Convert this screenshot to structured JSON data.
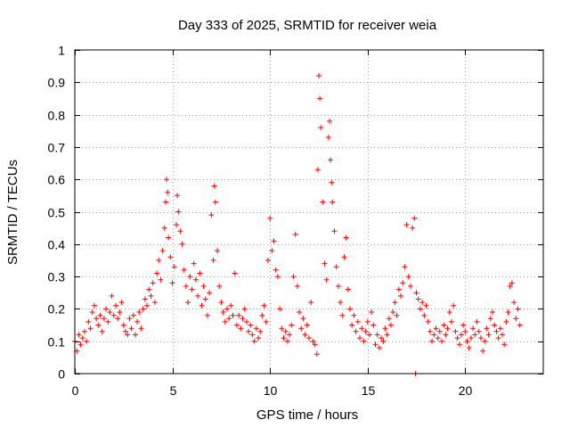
{
  "chart_data": {
    "type": "scatter",
    "title": "Day 333 of 2025, SRMTID for receiver weia",
    "xlabel": "GPS time / hours",
    "ylabel": "SRMTID / TECUs",
    "xlim": [
      0,
      24
    ],
    "ylim": [
      0,
      1
    ],
    "xticks": [
      0,
      5,
      10,
      15,
      20
    ],
    "xtick_labels": [
      "0",
      "5",
      "10",
      "15",
      "20"
    ],
    "yticks": [
      0,
      0.1,
      0.2,
      0.3,
      0.4,
      0.5,
      0.6,
      0.7,
      0.8,
      0.9,
      1
    ],
    "ytick_labels": [
      "0",
      "0.1",
      "0.2",
      "0.3",
      "0.4",
      "0.5",
      "0.6",
      "0.7",
      "0.8",
      "0.9",
      "1"
    ],
    "grid": true,
    "marker": "+",
    "marker_color": "#ff0000",
    "series": [
      {
        "name": "SRMTID",
        "points": [
          [
            0.0,
            0.1
          ],
          [
            0.1,
            0.07
          ],
          [
            0.2,
            0.12
          ],
          [
            0.3,
            0.09
          ],
          [
            0.4,
            0.11
          ],
          [
            0.5,
            0.13
          ],
          [
            0.6,
            0.1
          ],
          [
            0.7,
            0.16
          ],
          [
            0.8,
            0.14
          ],
          [
            0.9,
            0.19
          ],
          [
            1.0,
            0.21
          ],
          [
            1.1,
            0.17
          ],
          [
            1.2,
            0.15
          ],
          [
            1.3,
            0.18
          ],
          [
            1.4,
            0.13
          ],
          [
            1.5,
            0.17
          ],
          [
            1.6,
            0.2
          ],
          [
            1.7,
            0.16
          ],
          [
            1.8,
            0.19
          ],
          [
            1.9,
            0.24
          ],
          [
            2.0,
            0.18
          ],
          [
            2.1,
            0.21
          ],
          [
            2.2,
            0.17
          ],
          [
            2.3,
            0.19
          ],
          [
            2.4,
            0.22
          ],
          [
            2.5,
            0.15
          ],
          [
            2.6,
            0.13
          ],
          [
            2.7,
            0.12
          ],
          [
            2.8,
            0.17
          ],
          [
            2.9,
            0.14
          ],
          [
            3.0,
            0.18
          ],
          [
            3.1,
            0.12
          ],
          [
            3.2,
            0.16
          ],
          [
            3.3,
            0.19
          ],
          [
            3.4,
            0.14
          ],
          [
            3.5,
            0.2
          ],
          [
            3.6,
            0.23
          ],
          [
            3.7,
            0.21
          ],
          [
            3.8,
            0.26
          ],
          [
            3.9,
            0.24
          ],
          [
            4.0,
            0.28
          ],
          [
            4.1,
            0.22
          ],
          [
            4.2,
            0.31
          ],
          [
            4.3,
            0.35
          ],
          [
            4.4,
            0.29
          ],
          [
            4.5,
            0.38
          ],
          [
            4.6,
            0.45
          ],
          [
            4.65,
            0.53
          ],
          [
            4.7,
            0.6
          ],
          [
            4.75,
            0.56
          ],
          [
            4.8,
            0.42
          ],
          [
            4.9,
            0.36
          ],
          [
            5.0,
            0.28
          ],
          [
            5.1,
            0.33
          ],
          [
            5.2,
            0.46
          ],
          [
            5.25,
            0.55
          ],
          [
            5.3,
            0.5
          ],
          [
            5.4,
            0.44
          ],
          [
            5.5,
            0.4
          ],
          [
            5.6,
            0.32
          ],
          [
            5.7,
            0.27
          ],
          [
            5.8,
            0.22
          ],
          [
            5.9,
            0.3
          ],
          [
            6.0,
            0.26
          ],
          [
            6.1,
            0.34
          ],
          [
            6.2,
            0.29
          ],
          [
            6.3,
            0.24
          ],
          [
            6.4,
            0.31
          ],
          [
            6.5,
            0.21
          ],
          [
            6.6,
            0.27
          ],
          [
            6.7,
            0.23
          ],
          [
            6.8,
            0.18
          ],
          [
            6.9,
            0.25
          ],
          [
            7.0,
            0.49
          ],
          [
            7.1,
            0.35
          ],
          [
            7.15,
            0.58
          ],
          [
            7.2,
            0.53
          ],
          [
            7.3,
            0.38
          ],
          [
            7.4,
            0.27
          ],
          [
            7.5,
            0.22
          ],
          [
            7.6,
            0.19
          ],
          [
            7.7,
            0.16
          ],
          [
            7.8,
            0.2
          ],
          [
            7.9,
            0.17
          ],
          [
            8.0,
            0.21
          ],
          [
            8.1,
            0.18
          ],
          [
            8.2,
            0.31
          ],
          [
            8.3,
            0.15
          ],
          [
            8.4,
            0.18
          ],
          [
            8.5,
            0.14
          ],
          [
            8.6,
            0.17
          ],
          [
            8.7,
            0.2
          ],
          [
            8.8,
            0.16
          ],
          [
            8.9,
            0.13
          ],
          [
            9.0,
            0.15
          ],
          [
            9.1,
            0.12
          ],
          [
            9.2,
            0.1
          ],
          [
            9.3,
            0.14
          ],
          [
            9.4,
            0.11
          ],
          [
            9.5,
            0.13
          ],
          [
            9.6,
            0.18
          ],
          [
            9.7,
            0.21
          ],
          [
            9.8,
            0.16
          ],
          [
            9.9,
            0.35
          ],
          [
            10.0,
            0.48
          ],
          [
            10.1,
            0.38
          ],
          [
            10.2,
            0.41
          ],
          [
            10.3,
            0.32
          ],
          [
            10.4,
            0.3
          ],
          [
            10.5,
            0.2
          ],
          [
            10.6,
            0.14
          ],
          [
            10.7,
            0.11
          ],
          [
            10.8,
            0.13
          ],
          [
            10.9,
            0.1
          ],
          [
            11.0,
            0.12
          ],
          [
            11.1,
            0.15
          ],
          [
            11.2,
            0.3
          ],
          [
            11.3,
            0.43
          ],
          [
            11.4,
            0.27
          ],
          [
            11.5,
            0.19
          ],
          [
            11.6,
            0.14
          ],
          [
            11.7,
            0.17
          ],
          [
            11.8,
            0.12
          ],
          [
            11.9,
            0.15
          ],
          [
            12.0,
            0.11
          ],
          [
            12.1,
            0.22
          ],
          [
            12.2,
            0.1
          ],
          [
            12.3,
            0.09
          ],
          [
            12.4,
            0.06
          ],
          [
            12.45,
            0.63
          ],
          [
            12.5,
            0.92
          ],
          [
            12.55,
            0.85
          ],
          [
            12.6,
            0.76
          ],
          [
            12.7,
            0.53
          ],
          [
            12.8,
            0.34
          ],
          [
            12.9,
            0.29
          ],
          [
            13.0,
            0.73
          ],
          [
            13.05,
            0.78
          ],
          [
            13.1,
            0.66
          ],
          [
            13.15,
            0.59
          ],
          [
            13.2,
            0.53
          ],
          [
            13.3,
            0.44
          ],
          [
            13.4,
            0.33
          ],
          [
            13.5,
            0.27
          ],
          [
            13.6,
            0.22
          ],
          [
            13.7,
            0.18
          ],
          [
            13.8,
            0.36
          ],
          [
            13.9,
            0.42
          ],
          [
            14.0,
            0.26
          ],
          [
            14.1,
            0.2
          ],
          [
            14.2,
            0.15
          ],
          [
            14.3,
            0.18
          ],
          [
            14.4,
            0.13
          ],
          [
            14.5,
            0.16
          ],
          [
            14.6,
            0.11
          ],
          [
            14.7,
            0.14
          ],
          [
            14.8,
            0.1
          ],
          [
            14.9,
            0.13
          ],
          [
            15.0,
            0.16
          ],
          [
            15.1,
            0.12
          ],
          [
            15.2,
            0.19
          ],
          [
            15.3,
            0.15
          ],
          [
            15.4,
            0.09
          ],
          [
            15.5,
            0.12
          ],
          [
            15.6,
            0.08
          ],
          [
            15.7,
            0.11
          ],
          [
            15.8,
            0.1
          ],
          [
            15.9,
            0.14
          ],
          [
            16.0,
            0.12
          ],
          [
            16.1,
            0.17
          ],
          [
            16.2,
            0.15
          ],
          [
            16.3,
            0.19
          ],
          [
            16.4,
            0.22
          ],
          [
            16.5,
            0.18
          ],
          [
            16.6,
            0.26
          ],
          [
            16.7,
            0.24
          ],
          [
            16.8,
            0.28
          ],
          [
            16.9,
            0.33
          ],
          [
            17.0,
            0.46
          ],
          [
            17.1,
            0.3
          ],
          [
            17.2,
            0.27
          ],
          [
            17.3,
            0.45
          ],
          [
            17.4,
            0.48
          ],
          [
            17.45,
            0.0
          ],
          [
            17.5,
            0.25
          ],
          [
            17.6,
            0.23
          ],
          [
            17.7,
            0.2
          ],
          [
            17.8,
            0.22
          ],
          [
            17.9,
            0.18
          ],
          [
            18.0,
            0.21
          ],
          [
            18.1,
            0.16
          ],
          [
            18.2,
            0.13
          ],
          [
            18.3,
            0.1
          ],
          [
            18.4,
            0.12
          ],
          [
            18.5,
            0.14
          ],
          [
            18.6,
            0.11
          ],
          [
            18.7,
            0.13
          ],
          [
            18.8,
            0.1
          ],
          [
            18.9,
            0.15
          ],
          [
            19.0,
            0.12
          ],
          [
            19.1,
            0.14
          ],
          [
            19.2,
            0.19
          ],
          [
            19.3,
            0.16
          ],
          [
            19.4,
            0.21
          ],
          [
            19.5,
            0.13
          ],
          [
            19.6,
            0.11
          ],
          [
            19.7,
            0.09
          ],
          [
            19.8,
            0.12
          ],
          [
            19.9,
            0.15
          ],
          [
            20.0,
            0.13
          ],
          [
            20.1,
            0.1
          ],
          [
            20.2,
            0.08
          ],
          [
            20.3,
            0.11
          ],
          [
            20.4,
            0.14
          ],
          [
            20.5,
            0.12
          ],
          [
            20.6,
            0.16
          ],
          [
            20.7,
            0.13
          ],
          [
            20.8,
            0.11
          ],
          [
            20.9,
            0.07
          ],
          [
            21.0,
            0.1
          ],
          [
            21.1,
            0.14
          ],
          [
            21.2,
            0.12
          ],
          [
            21.3,
            0.17
          ],
          [
            21.4,
            0.19
          ],
          [
            21.5,
            0.15
          ],
          [
            21.6,
            0.13
          ],
          [
            21.7,
            0.11
          ],
          [
            21.8,
            0.14
          ],
          [
            21.9,
            0.12
          ],
          [
            22.0,
            0.09
          ],
          [
            22.1,
            0.16
          ],
          [
            22.2,
            0.19
          ],
          [
            22.3,
            0.27
          ],
          [
            22.4,
            0.28
          ],
          [
            22.5,
            0.22
          ],
          [
            22.6,
            0.17
          ],
          [
            22.7,
            0.2
          ],
          [
            22.8,
            0.15
          ]
        ]
      }
    ]
  }
}
